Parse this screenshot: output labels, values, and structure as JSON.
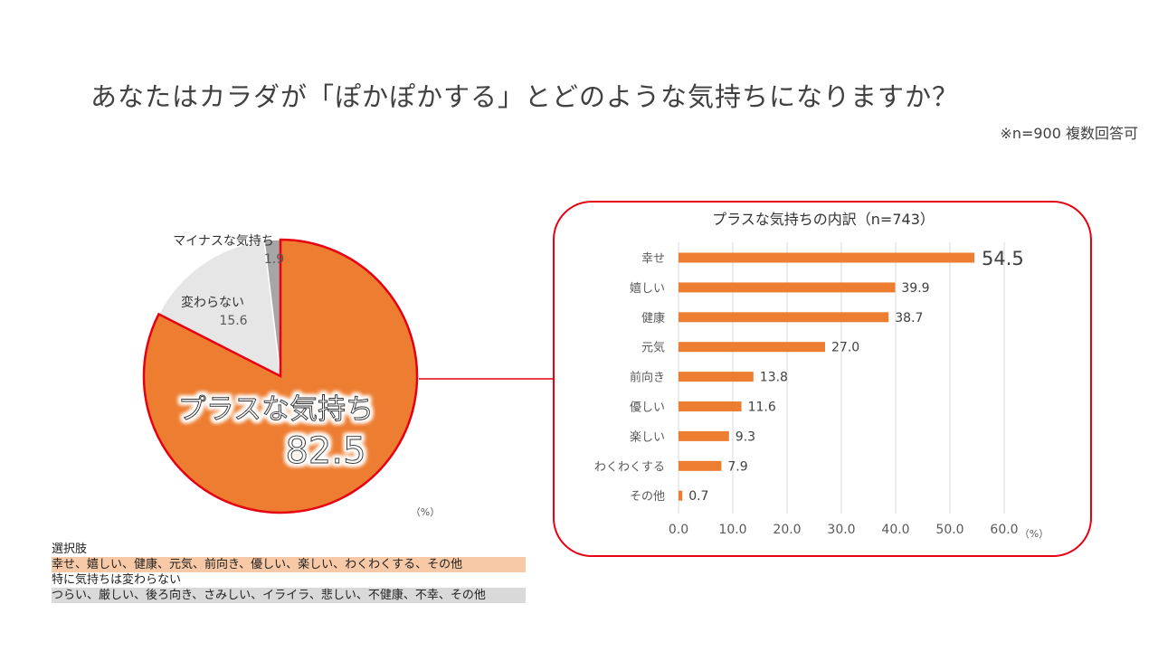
{
  "title": "あなたはカラダが「ぽかぽかする」とどのような気持ちになりますか？",
  "note": "※n=900 複数回答可",
  "chart_data": [
    {
      "type": "pie",
      "slices": [
        {
          "label": "プラスな気持ち",
          "value": 82.5,
          "color": "#ed7d31"
        },
        {
          "label": "変わらない",
          "value": 15.6,
          "color": "#e7e6e6"
        },
        {
          "label": "マイナスな気持ち",
          "value": 1.9,
          "color": "#a6a6a6"
        }
      ],
      "unit": "（%）"
    },
    {
      "type": "bar",
      "orientation": "horizontal",
      "title": "プラスな気持ちの内訳（n=743）",
      "categories": [
        "幸せ",
        "嬉しい",
        "健康",
        "元気",
        "前向き",
        "優しい",
        "楽しい",
        "わくわくする",
        "その他"
      ],
      "values": [
        54.5,
        39.9,
        38.7,
        27.0,
        13.8,
        11.6,
        9.3,
        7.9,
        0.7
      ],
      "value_labels": [
        "54.5",
        "39.9",
        "38.7",
        "27.0",
        "13.8",
        "11.6",
        "9.3",
        "7.9",
        "0.7"
      ],
      "xlim": [
        0,
        60
      ],
      "xticks": [
        "0.0",
        "10.0",
        "20.0",
        "30.0",
        "40.0",
        "50.0",
        "60.0"
      ],
      "xunit": "（%）",
      "bar_color": "#ed7d31",
      "grid": true
    }
  ],
  "legend": {
    "heading": "選択肢",
    "positive": "幸せ、嬉しい、健康、元気、前向き、優しい、楽しい、わくわくする、その他",
    "neutral_heading": "特に気持ちは変わらない",
    "negative": "つらい、厳しい、後ろ向き、さみしい、イライラ、悲しい、不健康、不幸、その他"
  }
}
